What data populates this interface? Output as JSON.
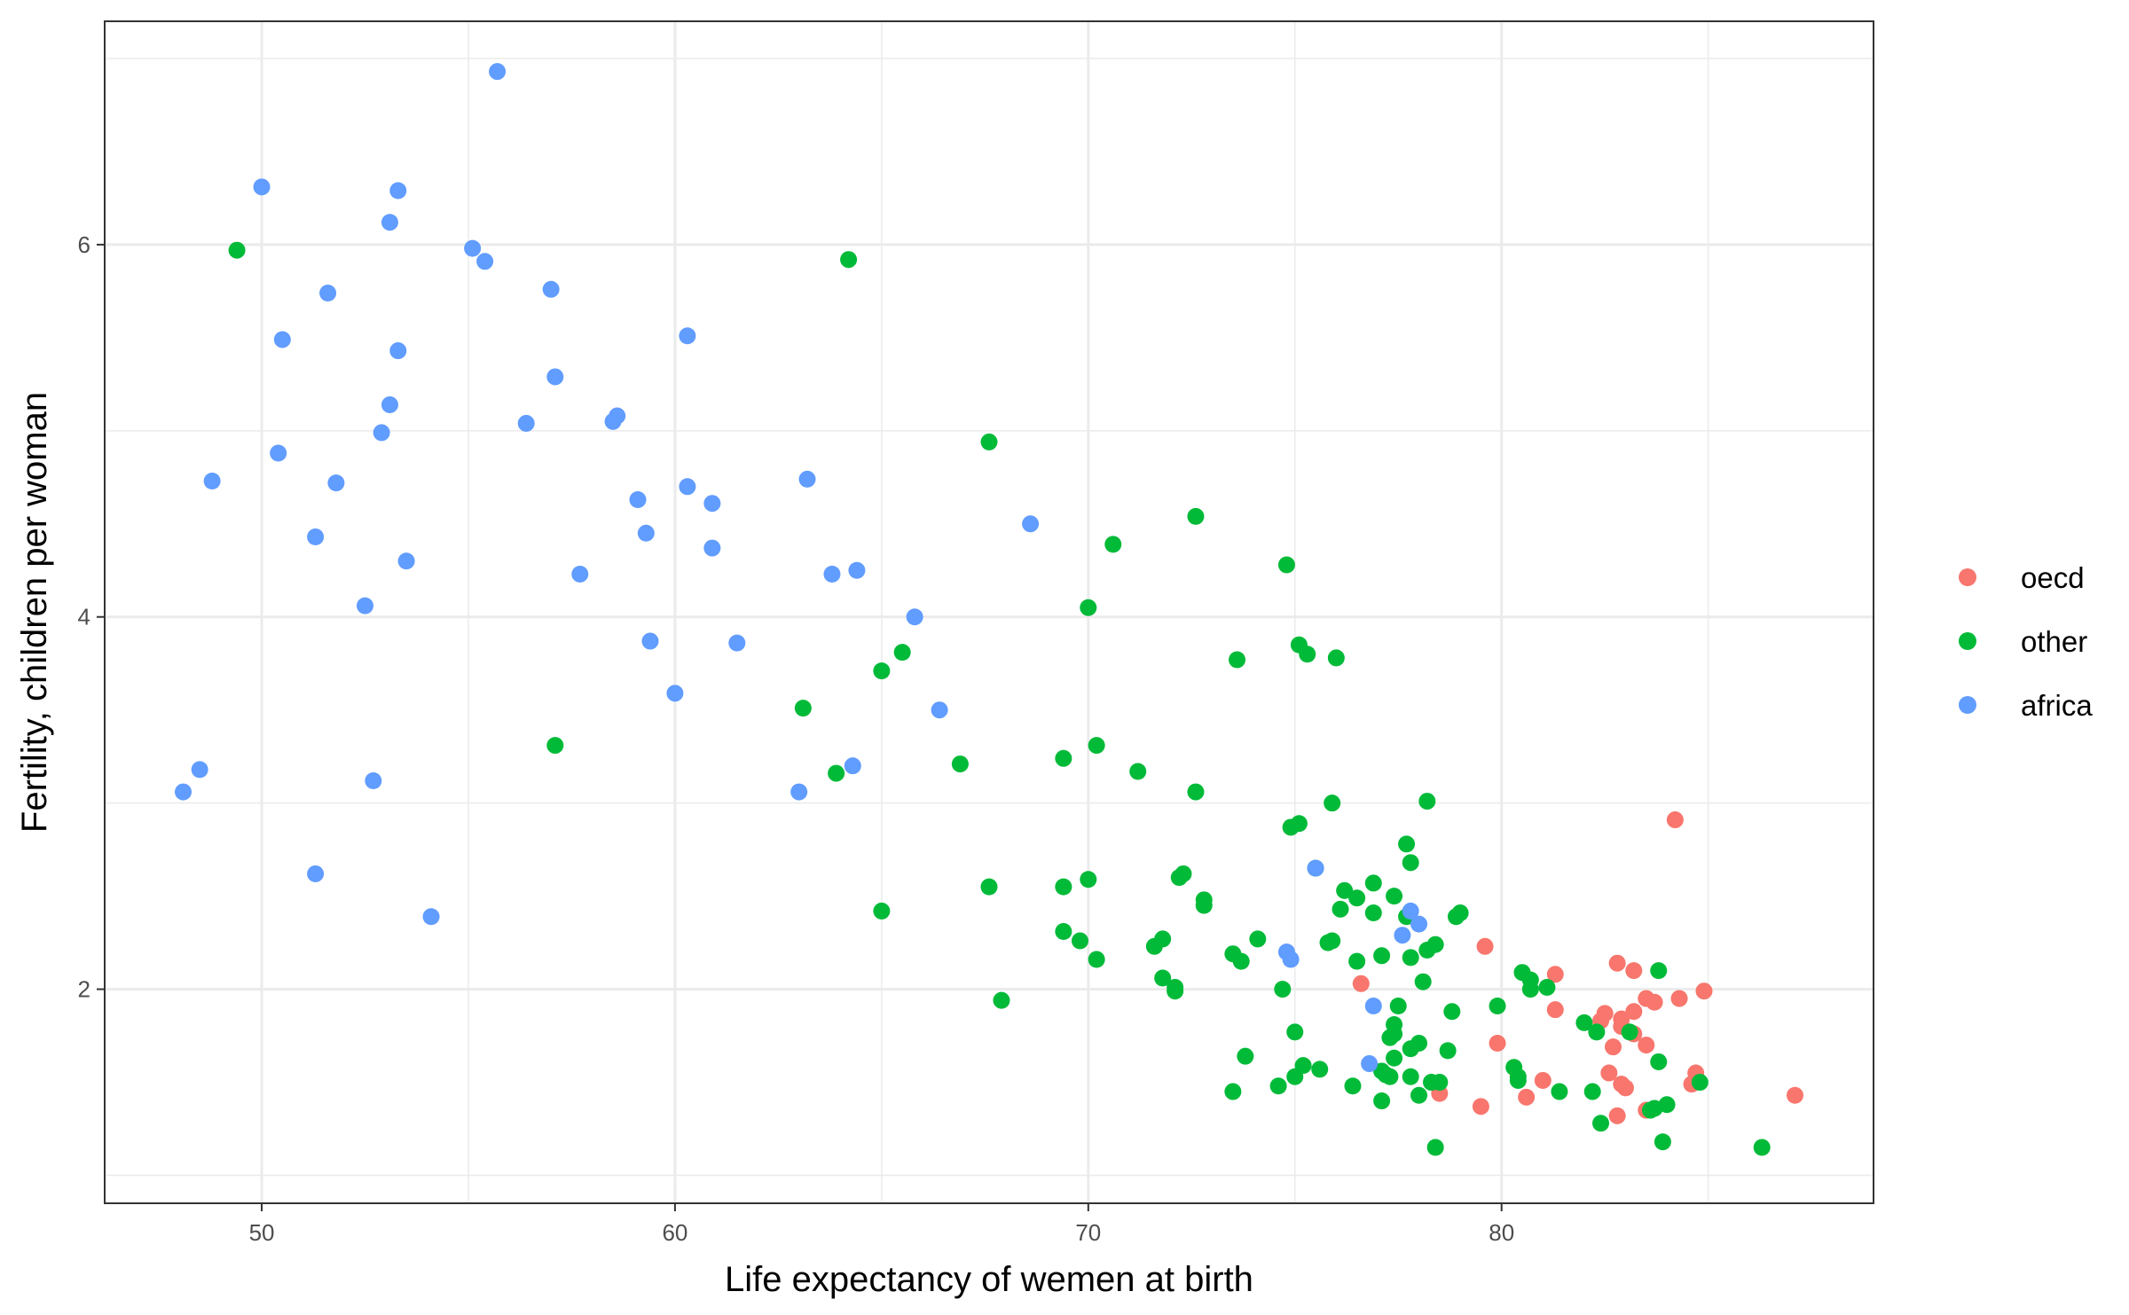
{
  "chart_data": {
    "type": "scatter",
    "title": "",
    "xlabel": "Life expectancy of wemen at birth",
    "ylabel": "Fertility, children per woman",
    "xlim": [
      46.2,
      89.0
    ],
    "ylim": [
      0.85,
      7.2
    ],
    "x_ticks": [
      50,
      60,
      70,
      80
    ],
    "x_tick_labels": [
      "50",
      "60",
      "70",
      "80"
    ],
    "y_ticks": [
      2,
      4,
      6
    ],
    "y_tick_labels": [
      "2",
      "4",
      "6"
    ],
    "x_minor_ticks": [
      55,
      65,
      75,
      85
    ],
    "y_minor_ticks": [
      1,
      3,
      5,
      7
    ],
    "grid": true,
    "legend": {
      "position": "right",
      "title": ""
    },
    "series": [
      {
        "name": "oecd",
        "color": "#F8766D",
        "points": [
          [
            84.2,
            2.91
          ],
          [
            79.6,
            2.23
          ],
          [
            76.6,
            2.03
          ],
          [
            82.8,
            2.14
          ],
          [
            83.2,
            2.1
          ],
          [
            81.3,
            2.08
          ],
          [
            84.9,
            1.99
          ],
          [
            84.3,
            1.95
          ],
          [
            83.5,
            1.95
          ],
          [
            83.7,
            1.93
          ],
          [
            81.3,
            1.89
          ],
          [
            83.2,
            1.88
          ],
          [
            82.5,
            1.87
          ],
          [
            82.4,
            1.83
          ],
          [
            82.9,
            1.84
          ],
          [
            82.9,
            1.8
          ],
          [
            83.2,
            1.76
          ],
          [
            79.9,
            1.71
          ],
          [
            82.7,
            1.69
          ],
          [
            83.5,
            1.7
          ],
          [
            82.6,
            1.55
          ],
          [
            84.7,
            1.55
          ],
          [
            82.9,
            1.49
          ],
          [
            83.0,
            1.47
          ],
          [
            84.6,
            1.49
          ],
          [
            81.0,
            1.51
          ],
          [
            78.5,
            1.44
          ],
          [
            80.6,
            1.42
          ],
          [
            79.5,
            1.37
          ],
          [
            83.5,
            1.35
          ],
          [
            82.8,
            1.32
          ],
          [
            87.1,
            1.43
          ]
        ]
      },
      {
        "name": "other",
        "color": "#00BA38",
        "points": [
          [
            49.4,
            5.97
          ],
          [
            64.2,
            5.92
          ],
          [
            67.6,
            4.94
          ],
          [
            72.6,
            4.54
          ],
          [
            70.6,
            4.39
          ],
          [
            74.8,
            4.28
          ],
          [
            70.0,
            4.05
          ],
          [
            75.1,
            3.85
          ],
          [
            75.3,
            3.8
          ],
          [
            76.0,
            3.78
          ],
          [
            73.6,
            3.77
          ],
          [
            65.5,
            3.81
          ],
          [
            65.0,
            3.71
          ],
          [
            63.1,
            3.51
          ],
          [
            57.1,
            3.31
          ],
          [
            70.2,
            3.31
          ],
          [
            69.4,
            3.24
          ],
          [
            66.9,
            3.21
          ],
          [
            71.2,
            3.17
          ],
          [
            63.9,
            3.16
          ],
          [
            72.6,
            3.06
          ],
          [
            78.2,
            3.01
          ],
          [
            75.9,
            3.0
          ],
          [
            75.1,
            2.89
          ],
          [
            74.9,
            2.87
          ],
          [
            77.7,
            2.78
          ],
          [
            77.8,
            2.68
          ],
          [
            75.5,
            2.65
          ],
          [
            72.3,
            2.62
          ],
          [
            72.2,
            2.6
          ],
          [
            70.0,
            2.59
          ],
          [
            69.4,
            2.55
          ],
          [
            67.6,
            2.55
          ],
          [
            76.9,
            2.57
          ],
          [
            76.2,
            2.53
          ],
          [
            76.5,
            2.49
          ],
          [
            77.4,
            2.5
          ],
          [
            72.8,
            2.48
          ],
          [
            72.8,
            2.45
          ],
          [
            76.1,
            2.43
          ],
          [
            76.9,
            2.41
          ],
          [
            77.7,
            2.39
          ],
          [
            79.0,
            2.41
          ],
          [
            78.9,
            2.39
          ],
          [
            65.0,
            2.42
          ],
          [
            69.4,
            2.31
          ],
          [
            69.8,
            2.26
          ],
          [
            74.1,
            2.27
          ],
          [
            75.9,
            2.26
          ],
          [
            75.8,
            2.25
          ],
          [
            71.8,
            2.27
          ],
          [
            71.6,
            2.23
          ],
          [
            78.4,
            2.24
          ],
          [
            78.2,
            2.21
          ],
          [
            73.5,
            2.19
          ],
          [
            73.7,
            2.15
          ],
          [
            70.2,
            2.16
          ],
          [
            76.5,
            2.15
          ],
          [
            77.1,
            2.18
          ],
          [
            77.8,
            2.17
          ],
          [
            80.5,
            2.09
          ],
          [
            80.7,
            2.05
          ],
          [
            80.7,
            2.0
          ],
          [
            81.1,
            2.01
          ],
          [
            83.8,
            2.1
          ],
          [
            78.1,
            2.04
          ],
          [
            71.8,
            2.06
          ],
          [
            72.1,
            1.99
          ],
          [
            72.1,
            2.01
          ],
          [
            74.7,
            2.0
          ],
          [
            67.9,
            1.94
          ],
          [
            77.5,
            1.91
          ],
          [
            79.9,
            1.91
          ],
          [
            78.8,
            1.88
          ],
          [
            82.0,
            1.82
          ],
          [
            82.3,
            1.77
          ],
          [
            83.1,
            1.77
          ],
          [
            77.4,
            1.81
          ],
          [
            77.4,
            1.76
          ],
          [
            77.3,
            1.74
          ],
          [
            75.0,
            1.77
          ],
          [
            78.0,
            1.71
          ],
          [
            77.8,
            1.68
          ],
          [
            78.7,
            1.67
          ],
          [
            73.8,
            1.64
          ],
          [
            77.4,
            1.63
          ],
          [
            83.8,
            1.61
          ],
          [
            75.2,
            1.59
          ],
          [
            75.6,
            1.57
          ],
          [
            77.1,
            1.56
          ],
          [
            77.2,
            1.54
          ],
          [
            77.3,
            1.53
          ],
          [
            77.8,
            1.53
          ],
          [
            75.0,
            1.53
          ],
          [
            80.3,
            1.58
          ],
          [
            80.4,
            1.53
          ],
          [
            80.4,
            1.51
          ],
          [
            78.3,
            1.5
          ],
          [
            78.5,
            1.5
          ],
          [
            76.4,
            1.48
          ],
          [
            74.6,
            1.48
          ],
          [
            84.8,
            1.5
          ],
          [
            81.4,
            1.45
          ],
          [
            82.2,
            1.45
          ],
          [
            73.5,
            1.45
          ],
          [
            78.0,
            1.43
          ],
          [
            77.1,
            1.4
          ],
          [
            84.0,
            1.38
          ],
          [
            83.7,
            1.36
          ],
          [
            83.6,
            1.35
          ],
          [
            82.4,
            1.28
          ],
          [
            78.4,
            1.15
          ],
          [
            83.9,
            1.18
          ],
          [
            86.3,
            1.15
          ]
        ]
      },
      {
        "name": "africa",
        "color": "#619CFF",
        "points": [
          [
            55.7,
            6.93
          ],
          [
            50.0,
            6.31
          ],
          [
            53.3,
            6.29
          ],
          [
            53.1,
            6.12
          ],
          [
            55.1,
            5.98
          ],
          [
            55.4,
            5.91
          ],
          [
            51.6,
            5.74
          ],
          [
            57.0,
            5.76
          ],
          [
            50.5,
            5.49
          ],
          [
            53.3,
            5.43
          ],
          [
            60.3,
            5.51
          ],
          [
            57.1,
            5.29
          ],
          [
            53.1,
            5.14
          ],
          [
            58.6,
            5.08
          ],
          [
            58.5,
            5.05
          ],
          [
            56.4,
            5.04
          ],
          [
            52.9,
            4.99
          ],
          [
            50.4,
            4.88
          ],
          [
            48.8,
            4.73
          ],
          [
            51.8,
            4.72
          ],
          [
            63.2,
            4.74
          ],
          [
            60.3,
            4.7
          ],
          [
            59.1,
            4.63
          ],
          [
            60.9,
            4.61
          ],
          [
            68.6,
            4.5
          ],
          [
            51.3,
            4.43
          ],
          [
            59.3,
            4.45
          ],
          [
            60.9,
            4.37
          ],
          [
            53.5,
            4.3
          ],
          [
            57.7,
            4.23
          ],
          [
            63.8,
            4.23
          ],
          [
            64.4,
            4.25
          ],
          [
            52.5,
            4.06
          ],
          [
            65.8,
            4.0
          ],
          [
            59.4,
            3.87
          ],
          [
            61.5,
            3.86
          ],
          [
            60.0,
            3.59
          ],
          [
            66.4,
            3.5
          ],
          [
            48.5,
            3.18
          ],
          [
            64.3,
            3.2
          ],
          [
            48.1,
            3.06
          ],
          [
            52.7,
            3.12
          ],
          [
            63.0,
            3.06
          ],
          [
            51.3,
            2.62
          ],
          [
            54.1,
            2.39
          ],
          [
            75.5,
            2.65
          ],
          [
            77.8,
            2.42
          ],
          [
            78.0,
            2.35
          ],
          [
            74.8,
            2.2
          ],
          [
            74.9,
            2.16
          ],
          [
            77.6,
            2.29
          ],
          [
            76.9,
            1.91
          ],
          [
            76.8,
            1.6
          ]
        ]
      }
    ]
  }
}
